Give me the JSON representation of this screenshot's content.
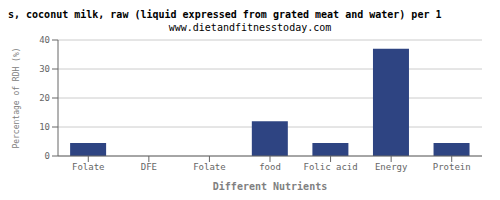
{
  "chart_data": {
    "type": "bar",
    "title": "s, coconut milk, raw (liquid expressed from grated meat and water) per 1",
    "subtitle": "www.dietandfitnesstoday.com",
    "xlabel": "Different Nutrients",
    "ylabel": "Percentage of RDH (%)",
    "categories": [
      "Folate",
      "DFE",
      "Folate",
      "food",
      "Folic acid",
      "Energy",
      "Protein"
    ],
    "values": [
      4.5,
      0,
      0,
      12,
      4.5,
      37,
      4.5
    ],
    "color": "#2e4482",
    "ylim": [
      0,
      40
    ],
    "yticks": [
      0,
      10,
      20,
      30,
      40
    ],
    "grid": true
  }
}
